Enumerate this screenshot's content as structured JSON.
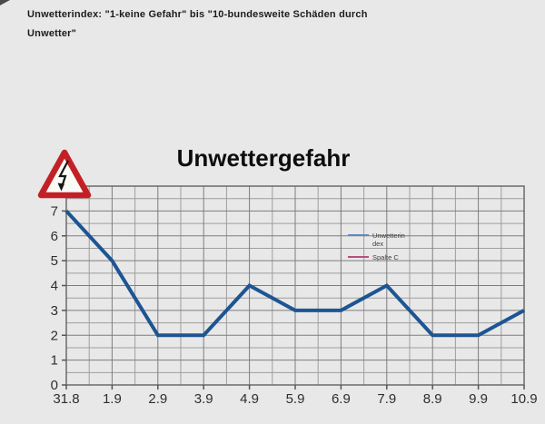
{
  "page": {
    "background_color": "#e8e8e8"
  },
  "header": {
    "line1": "Unwetterindex: \"1-keine Gefahr\" bis \"10-bundesweite Schäden durch",
    "line2": "Unwetter\""
  },
  "chart_data": {
    "type": "line",
    "title": "Unwettergefahr",
    "categories": [
      "31.8",
      "1.9",
      "2.9",
      "3.9",
      "4.9",
      "5.9",
      "6.9",
      "7.9",
      "8.9",
      "9.9",
      "10.9"
    ],
    "series": [
      {
        "name": "Unwetterindex",
        "label_lines": [
          "Unwetterin",
          "dex"
        ],
        "legend_color": "#5b8ac5",
        "line_color": "#1d5593",
        "values": [
          7,
          5,
          2,
          2,
          4,
          3,
          3,
          4,
          2,
          2,
          3
        ]
      },
      {
        "name": "Spalte C",
        "label_lines": [
          "Spalte C"
        ],
        "legend_color": "#b5507d",
        "line_color": "#b5507d",
        "values": []
      }
    ],
    "xlabel": "",
    "ylabel": "",
    "ylim": [
      0,
      8
    ],
    "yticks_shown": [
      0,
      1,
      2,
      3,
      4,
      5,
      6,
      7
    ],
    "grid": {
      "on": true,
      "y_minor_step": 0.5,
      "x_minor_per_interval": 2,
      "minor_color": "#9e9e9e",
      "major_color": "#7d7d7d",
      "frame_color": "#6b6b6b"
    },
    "legend_position": "inside-right",
    "tick_label_color": "#2e2e2e",
    "legend_text_color": "#3c3c3c"
  },
  "icons": {
    "storm_warning": {
      "meaning": "electrical-storm-hazard-warning-triangle",
      "triangle_color": "#c32026",
      "fill_color": "#fbfbf6",
      "bolt_color": "#161616"
    }
  }
}
